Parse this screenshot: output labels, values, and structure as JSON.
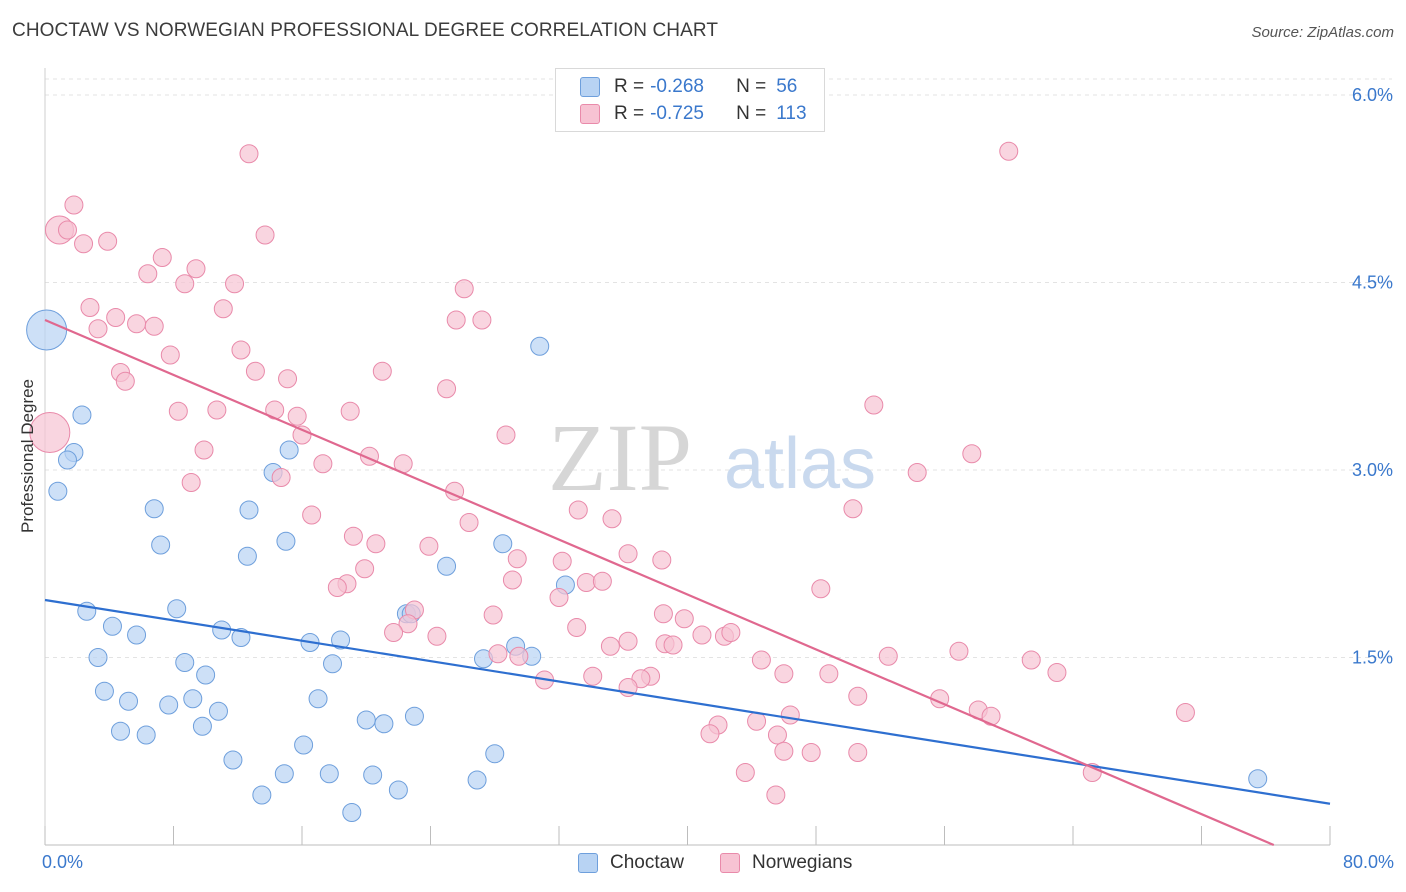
{
  "title": "CHOCTAW VS NORWEGIAN PROFESSIONAL DEGREE CORRELATION CHART",
  "source": "Source: ZipAtlas.com",
  "watermark": {
    "zip": "ZIP",
    "atlas": "atlas"
  },
  "colors": {
    "choctaw_fill": "#b8d3f3",
    "choctaw_stroke": "#6e9fdc",
    "choctaw_line": "#2e6fd0",
    "norwegian_fill": "#f7c3d3",
    "norwegian_stroke": "#e98aaa",
    "norwegian_line": "#e0688f",
    "axis_text": "#3a78cc",
    "grid": "#e3e3e3"
  },
  "legend_top": {
    "rows": [
      {
        "series": "Choctaw",
        "r_label": "R =",
        "r_value": "-0.268",
        "n_label": "N =",
        "n_value": "56"
      },
      {
        "series": "Norwegians",
        "r_label": "R =",
        "r_value": "-0.725",
        "n_label": "N =",
        "n_value": "113"
      }
    ]
  },
  "legend_bottom": [
    "Choctaw",
    "Norwegians"
  ],
  "chart_data": {
    "type": "scatter",
    "xlabel": "",
    "ylabel": "Professional Degree",
    "xlim": [
      0,
      80
    ],
    "ylim": [
      0,
      6.2
    ],
    "x_tick_labels": [
      "0.0%",
      "80.0%"
    ],
    "y_ticks": [
      1.5,
      3.0,
      4.5,
      6.0
    ],
    "y_tick_labels": [
      "1.5%",
      "3.0%",
      "4.5%",
      "6.0%"
    ],
    "grid": true,
    "legend_position": "top-center",
    "series": [
      {
        "name": "Choctaw",
        "trend": {
          "x": [
            0,
            80
          ],
          "y": [
            1.96,
            0.33
          ]
        },
        "points": [
          [
            0.1,
            4.12,
            20
          ],
          [
            2.3,
            3.44,
            9
          ],
          [
            1.8,
            3.14,
            9
          ],
          [
            1.4,
            3.08,
            9
          ],
          [
            0.8,
            2.83,
            9
          ],
          [
            6.8,
            2.69,
            9
          ],
          [
            7.2,
            2.4,
            9
          ],
          [
            12.7,
            2.68,
            9
          ],
          [
            14.2,
            2.98,
            9
          ],
          [
            15.2,
            3.16,
            9
          ],
          [
            15.0,
            2.43,
            9
          ],
          [
            12.6,
            2.31,
            9
          ],
          [
            30.8,
            3.99,
            9
          ],
          [
            25.0,
            2.23,
            9
          ],
          [
            28.5,
            2.41,
            9
          ],
          [
            32.4,
            2.08,
            9
          ],
          [
            2.6,
            1.87,
            9
          ],
          [
            4.2,
            1.75,
            9
          ],
          [
            5.7,
            1.68,
            9
          ],
          [
            8.2,
            1.89,
            9
          ],
          [
            11.0,
            1.72,
            9
          ],
          [
            12.2,
            1.66,
            9
          ],
          [
            16.5,
            1.62,
            9
          ],
          [
            18.4,
            1.64,
            9
          ],
          [
            22.5,
            1.85,
            9
          ],
          [
            22.8,
            1.85,
            9
          ],
          [
            3.3,
            1.5,
            9
          ],
          [
            3.7,
            1.23,
            9
          ],
          [
            5.2,
            1.15,
            9
          ],
          [
            8.7,
            1.46,
            9
          ],
          [
            10.0,
            1.36,
            9
          ],
          [
            7.7,
            1.12,
            9
          ],
          [
            9.2,
            1.17,
            9
          ],
          [
            10.8,
            1.07,
            9
          ],
          [
            9.8,
            0.95,
            9
          ],
          [
            4.7,
            0.91,
            9
          ],
          [
            6.3,
            0.88,
            9
          ],
          [
            11.7,
            0.68,
            9
          ],
          [
            17.0,
            1.17,
            9
          ],
          [
            17.9,
            1.45,
            9
          ],
          [
            20.0,
            1.0,
            9
          ],
          [
            21.1,
            0.97,
            9
          ],
          [
            23.0,
            1.03,
            9
          ],
          [
            27.3,
            1.49,
            9
          ],
          [
            29.3,
            1.59,
            9
          ],
          [
            30.3,
            1.51,
            9
          ],
          [
            16.1,
            0.8,
            9
          ],
          [
            14.9,
            0.57,
            9
          ],
          [
            17.7,
            0.57,
            9
          ],
          [
            20.4,
            0.56,
            9
          ],
          [
            22.0,
            0.44,
            9
          ],
          [
            28.0,
            0.73,
            9
          ],
          [
            26.9,
            0.52,
            9
          ],
          [
            13.5,
            0.4,
            9
          ],
          [
            19.1,
            0.26,
            9
          ],
          [
            75.5,
            0.53,
            9
          ]
        ]
      },
      {
        "name": "Norwegians",
        "trend": {
          "x": [
            0,
            76.5
          ],
          "y": [
            4.2,
            0.0
          ]
        },
        "points": [
          [
            0.3,
            3.3,
            20
          ],
          [
            0.9,
            4.92,
            14
          ],
          [
            12.7,
            5.53,
            9
          ],
          [
            60.0,
            5.55,
            9
          ],
          [
            1.8,
            5.12,
            9
          ],
          [
            1.4,
            4.92,
            9
          ],
          [
            2.4,
            4.81,
            9
          ],
          [
            3.9,
            4.83,
            9
          ],
          [
            7.3,
            4.7,
            9
          ],
          [
            6.4,
            4.57,
            9
          ],
          [
            8.7,
            4.49,
            9
          ],
          [
            9.4,
            4.61,
            9
          ],
          [
            11.8,
            4.49,
            9
          ],
          [
            13.7,
            4.88,
            9
          ],
          [
            2.8,
            4.3,
            9
          ],
          [
            3.3,
            4.13,
            9
          ],
          [
            4.4,
            4.22,
            9
          ],
          [
            5.7,
            4.17,
            9
          ],
          [
            6.8,
            4.15,
            9
          ],
          [
            11.1,
            4.29,
            9
          ],
          [
            12.2,
            3.96,
            9
          ],
          [
            7.8,
            3.92,
            9
          ],
          [
            4.7,
            3.78,
            9
          ],
          [
            5.0,
            3.71,
            9
          ],
          [
            13.1,
            3.79,
            9
          ],
          [
            15.1,
            3.73,
            9
          ],
          [
            21.0,
            3.79,
            9
          ],
          [
            25.0,
            3.65,
            9
          ],
          [
            26.1,
            4.45,
            9
          ],
          [
            25.6,
            4.2,
            9
          ],
          [
            27.2,
            4.2,
            9
          ],
          [
            8.3,
            3.47,
            9
          ],
          [
            10.7,
            3.48,
            9
          ],
          [
            14.3,
            3.48,
            9
          ],
          [
            15.7,
            3.43,
            9
          ],
          [
            19.0,
            3.47,
            9
          ],
          [
            16.0,
            3.28,
            9
          ],
          [
            9.9,
            3.16,
            9
          ],
          [
            9.1,
            2.9,
            9
          ],
          [
            14.7,
            2.94,
            9
          ],
          [
            17.3,
            3.05,
            9
          ],
          [
            20.2,
            3.11,
            9
          ],
          [
            22.3,
            3.05,
            9
          ],
          [
            25.5,
            2.83,
            9
          ],
          [
            28.7,
            3.28,
            9
          ],
          [
            33.2,
            2.68,
            9
          ],
          [
            35.3,
            2.61,
            9
          ],
          [
            16.6,
            2.64,
            9
          ],
          [
            19.2,
            2.47,
            9
          ],
          [
            20.6,
            2.41,
            9
          ],
          [
            23.9,
            2.39,
            9
          ],
          [
            26.4,
            2.58,
            9
          ],
          [
            29.4,
            2.29,
            9
          ],
          [
            32.2,
            2.27,
            9
          ],
          [
            36.3,
            2.33,
            9
          ],
          [
            38.4,
            2.28,
            9
          ],
          [
            19.9,
            2.21,
            9
          ],
          [
            18.8,
            2.09,
            9
          ],
          [
            18.2,
            2.06,
            9
          ],
          [
            29.1,
            2.12,
            9
          ],
          [
            33.7,
            2.1,
            9
          ],
          [
            34.7,
            2.11,
            9
          ],
          [
            32.0,
            1.98,
            9
          ],
          [
            27.9,
            1.84,
            9
          ],
          [
            23.0,
            1.88,
            9
          ],
          [
            22.6,
            1.77,
            9
          ],
          [
            21.7,
            1.7,
            9
          ],
          [
            24.4,
            1.67,
            9
          ],
          [
            33.1,
            1.74,
            9
          ],
          [
            35.2,
            1.59,
            9
          ],
          [
            36.3,
            1.63,
            9
          ],
          [
            38.6,
            1.61,
            9
          ],
          [
            38.5,
            1.85,
            9
          ],
          [
            39.8,
            1.81,
            9
          ],
          [
            39.1,
            1.6,
            9
          ],
          [
            40.9,
            1.68,
            9
          ],
          [
            42.3,
            1.67,
            9
          ],
          [
            42.7,
            1.7,
            9
          ],
          [
            37.7,
            1.35,
            9
          ],
          [
            37.1,
            1.33,
            9
          ],
          [
            36.3,
            1.26,
            9
          ],
          [
            34.1,
            1.35,
            9
          ],
          [
            31.1,
            1.32,
            9
          ],
          [
            29.5,
            1.51,
            9
          ],
          [
            28.2,
            1.53,
            9
          ],
          [
            44.6,
            1.48,
            9
          ],
          [
            46.0,
            1.37,
            9
          ],
          [
            48.8,
            1.37,
            9
          ],
          [
            50.3,
            2.69,
            9
          ],
          [
            48.3,
            2.05,
            9
          ],
          [
            51.6,
            3.52,
            9
          ],
          [
            57.7,
            3.13,
            9
          ],
          [
            54.3,
            2.98,
            9
          ],
          [
            52.5,
            1.51,
            9
          ],
          [
            56.9,
            1.55,
            9
          ],
          [
            61.4,
            1.48,
            9
          ],
          [
            63.0,
            1.38,
            9
          ],
          [
            55.7,
            1.17,
            9
          ],
          [
            50.6,
            1.19,
            9
          ],
          [
            46.4,
            1.04,
            9
          ],
          [
            41.9,
            0.96,
            9
          ],
          [
            41.4,
            0.89,
            9
          ],
          [
            44.3,
            0.99,
            9
          ],
          [
            45.6,
            0.88,
            9
          ],
          [
            47.7,
            0.74,
            9
          ],
          [
            46.0,
            0.75,
            9
          ],
          [
            50.6,
            0.74,
            9
          ],
          [
            43.6,
            0.58,
            9
          ],
          [
            45.5,
            0.4,
            9
          ],
          [
            58.1,
            1.08,
            9
          ],
          [
            58.9,
            1.03,
            9
          ],
          [
            65.2,
            0.58,
            9
          ],
          [
            71.0,
            1.06,
            9
          ]
        ]
      }
    ]
  }
}
